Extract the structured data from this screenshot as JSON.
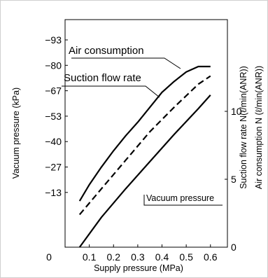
{
  "chart_data": {
    "type": "line",
    "xlabel": "Supply pressure (MPa)",
    "ylabel_left": "Vacuum pressure (kPa)",
    "ylabel_right_1": "Suction flow rate N(ℓ/min(ANR))",
    "ylabel_right_2": "Air consumption N (ℓ/min(ANR))",
    "x_ticks": [
      "0",
      "0.1",
      "0.2",
      "0.3",
      "0.4",
      "0.5",
      "0.6"
    ],
    "y_left_ticks": [
      "−93",
      "−80",
      "−67",
      "−53",
      "−40",
      "−27",
      "−13"
    ],
    "y_right_ticks": [
      "10",
      "5",
      "0"
    ],
    "xlim": [
      0,
      0.67
    ],
    "ylim_flow": [
      0,
      13.3
    ],
    "series": [
      {
        "name": "Air consumption",
        "style": "dashed",
        "x": [
          0.06,
          0.15,
          0.25,
          0.35,
          0.45,
          0.55,
          0.6
        ],
        "y": [
          2.4,
          4.3,
          6.4,
          8.5,
          10.3,
          12.0,
          12.6
        ]
      },
      {
        "name": "Suction flow rate",
        "style": "solid",
        "x": [
          0.06,
          0.1,
          0.15,
          0.2,
          0.25,
          0.3,
          0.35,
          0.4,
          0.45,
          0.5,
          0.55,
          0.6
        ],
        "y": [
          3.4,
          4.6,
          5.9,
          7.1,
          8.2,
          9.2,
          10.3,
          11.4,
          12.2,
          12.9,
          13.3,
          13.3
        ]
      },
      {
        "name": "Vacuum pressure",
        "style": "solid",
        "x": [
          0.06,
          0.15,
          0.25,
          0.35,
          0.45,
          0.55,
          0.6
        ],
        "y": [
          0,
          2.2,
          4.3,
          6.3,
          8.3,
          10.2,
          11.2
        ]
      }
    ]
  }
}
